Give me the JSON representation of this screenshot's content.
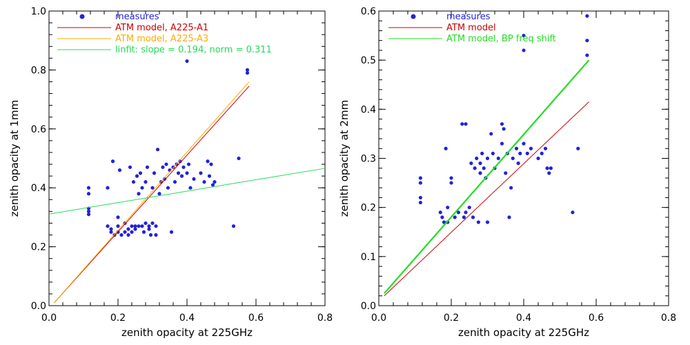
{
  "chart_data": [
    {
      "type": "scatter",
      "xlabel": "zenith opacity at 225GHz",
      "ylabel": "zenith opacity at 1mm",
      "xlim": [
        0,
        0.8
      ],
      "ylim": [
        0,
        1.0
      ],
      "xticks": [
        "0.0",
        "0.2",
        "0.4",
        "0.6",
        "0.8"
      ],
      "yticks": [
        "0.0",
        "0.2",
        "0.4",
        "0.6",
        "0.8",
        "1.0"
      ],
      "legend": [
        {
          "label": "measures",
          "color": "#2222dd",
          "kind": "marker"
        },
        {
          "label": "ATM model, A225-A1",
          "color": "#cc0000",
          "kind": "line"
        },
        {
          "label": "ATM model, A225-A3",
          "color": "#ffaa00",
          "kind": "line"
        },
        {
          "label": "linfit: slope =  0.194, norm =  0.311",
          "color": "#22dd55",
          "kind": "line"
        }
      ],
      "series": [
        {
          "name": "measures",
          "color": "#2222dd",
          "points": [
            [
              0.115,
              0.4
            ],
            [
              0.115,
              0.38
            ],
            [
              0.115,
              0.33
            ],
            [
              0.115,
              0.32
            ],
            [
              0.115,
              0.31
            ],
            [
              0.17,
              0.4
            ],
            [
              0.17,
              0.27
            ],
            [
              0.18,
              0.25
            ],
            [
              0.18,
              0.26
            ],
            [
              0.185,
              0.49
            ],
            [
              0.19,
              0.24
            ],
            [
              0.2,
              0.25
            ],
            [
              0.2,
              0.27
            ],
            [
              0.2,
              0.3
            ],
            [
              0.205,
              0.46
            ],
            [
              0.21,
              0.24
            ],
            [
              0.22,
              0.28
            ],
            [
              0.22,
              0.25
            ],
            [
              0.23,
              0.24
            ],
            [
              0.23,
              0.26
            ],
            [
              0.235,
              0.47
            ],
            [
              0.24,
              0.27
            ],
            [
              0.24,
              0.25
            ],
            [
              0.245,
              0.42
            ],
            [
              0.25,
              0.27
            ],
            [
              0.25,
              0.26
            ],
            [
              0.255,
              0.44
            ],
            [
              0.26,
              0.27
            ],
            [
              0.26,
              0.38
            ],
            [
              0.265,
              0.45
            ],
            [
              0.27,
              0.27
            ],
            [
              0.27,
              0.4
            ],
            [
              0.275,
              0.25
            ],
            [
              0.28,
              0.28
            ],
            [
              0.28,
              0.42
            ],
            [
              0.285,
              0.47
            ],
            [
              0.29,
              0.27
            ],
            [
              0.29,
              0.26
            ],
            [
              0.295,
              0.24
            ],
            [
              0.3,
              0.28
            ],
            [
              0.3,
              0.4
            ],
            [
              0.305,
              0.45
            ],
            [
              0.31,
              0.24
            ],
            [
              0.31,
              0.27
            ],
            [
              0.315,
              0.53
            ],
            [
              0.32,
              0.38
            ],
            [
              0.325,
              0.42
            ],
            [
              0.33,
              0.47
            ],
            [
              0.335,
              0.43
            ],
            [
              0.34,
              0.48
            ],
            [
              0.345,
              0.4
            ],
            [
              0.35,
              0.46
            ],
            [
              0.355,
              0.25
            ],
            [
              0.36,
              0.47
            ],
            [
              0.365,
              0.42
            ],
            [
              0.37,
              0.48
            ],
            [
              0.375,
              0.45
            ],
            [
              0.38,
              0.49
            ],
            [
              0.385,
              0.44
            ],
            [
              0.39,
              0.47
            ],
            [
              0.4,
              0.45
            ],
            [
              0.4,
              0.83
            ],
            [
              0.405,
              0.48
            ],
            [
              0.41,
              0.4
            ],
            [
              0.42,
              0.43
            ],
            [
              0.44,
              0.45
            ],
            [
              0.45,
              0.42
            ],
            [
              0.46,
              0.49
            ],
            [
              0.465,
              0.44
            ],
            [
              0.47,
              0.48
            ],
            [
              0.475,
              0.41
            ],
            [
              0.48,
              0.42
            ],
            [
              0.535,
              0.27
            ],
            [
              0.55,
              0.5
            ],
            [
              0.575,
              0.79
            ],
            [
              0.575,
              0.8
            ]
          ]
        },
        {
          "name": "ATM model, A225-A1",
          "color": "#cc0000",
          "line": [
            [
              0.015,
              0.01
            ],
            [
              0.58,
              0.745
            ]
          ]
        },
        {
          "name": "ATM model, A225-A3",
          "color": "#ffaa00",
          "line": [
            [
              0.015,
              0.01
            ],
            [
              0.58,
              0.76
            ]
          ]
        },
        {
          "name": "linfit: slope =  0.194, norm =  0.311",
          "color": "#22dd55",
          "line": [
            [
              0.0,
              0.311
            ],
            [
              0.8,
              0.4662
            ]
          ]
        }
      ]
    },
    {
      "type": "scatter",
      "xlabel": "zenith opacity at 225GHz",
      "ylabel": "zenith opacity at 2mm",
      "xlim": [
        0,
        0.8
      ],
      "ylim": [
        0,
        0.6
      ],
      "xticks": [
        "0.0",
        "0.2",
        "0.4",
        "0.6",
        "0.8"
      ],
      "yticks": [
        "0.0",
        "0.1",
        "0.2",
        "0.3",
        "0.4",
        "0.5",
        "0.6"
      ],
      "legend": [
        {
          "label": "measures",
          "color": "#2222dd",
          "kind": "marker"
        },
        {
          "label": "ATM model",
          "color": "#cc0000",
          "kind": "line"
        },
        {
          "label": "ATM model, BP freq shift",
          "color": "#22dd22",
          "kind": "line"
        }
      ],
      "series": [
        {
          "name": "measures",
          "color": "#2222dd",
          "points": [
            [
              0.115,
              0.26
            ],
            [
              0.115,
              0.25
            ],
            [
              0.115,
              0.22
            ],
            [
              0.115,
              0.21
            ],
            [
              0.17,
              0.19
            ],
            [
              0.175,
              0.18
            ],
            [
              0.18,
              0.17
            ],
            [
              0.185,
              0.32
            ],
            [
              0.19,
              0.2
            ],
            [
              0.19,
              0.17
            ],
            [
              0.2,
              0.26
            ],
            [
              0.2,
              0.25
            ],
            [
              0.21,
              0.18
            ],
            [
              0.22,
              0.19
            ],
            [
              0.23,
              0.37
            ],
            [
              0.235,
              0.18
            ],
            [
              0.24,
              0.19
            ],
            [
              0.24,
              0.37
            ],
            [
              0.25,
              0.2
            ],
            [
              0.255,
              0.29
            ],
            [
              0.26,
              0.18
            ],
            [
              0.265,
              0.28
            ],
            [
              0.27,
              0.3
            ],
            [
              0.275,
              0.17
            ],
            [
              0.28,
              0.29
            ],
            [
              0.28,
              0.27
            ],
            [
              0.285,
              0.31
            ],
            [
              0.29,
              0.28
            ],
            [
              0.295,
              0.26
            ],
            [
              0.3,
              0.3
            ],
            [
              0.3,
              0.17
            ],
            [
              0.31,
              0.35
            ],
            [
              0.315,
              0.31
            ],
            [
              0.32,
              0.28
            ],
            [
              0.33,
              0.3
            ],
            [
              0.34,
              0.37
            ],
            [
              0.34,
              0.33
            ],
            [
              0.345,
              0.36
            ],
            [
              0.35,
              0.27
            ],
            [
              0.355,
              0.31
            ],
            [
              0.36,
              0.18
            ],
            [
              0.365,
              0.24
            ],
            [
              0.37,
              0.3
            ],
            [
              0.38,
              0.32
            ],
            [
              0.385,
              0.29
            ],
            [
              0.39,
              0.31
            ],
            [
              0.4,
              0.33
            ],
            [
              0.4,
              0.55
            ],
            [
              0.4,
              0.52
            ],
            [
              0.41,
              0.31
            ],
            [
              0.42,
              0.32
            ],
            [
              0.44,
              0.3
            ],
            [
              0.45,
              0.31
            ],
            [
              0.46,
              0.32
            ],
            [
              0.465,
              0.28
            ],
            [
              0.47,
              0.27
            ],
            [
              0.475,
              0.28
            ],
            [
              0.535,
              0.19
            ],
            [
              0.55,
              0.32
            ],
            [
              0.575,
              0.59
            ],
            [
              0.575,
              0.54
            ],
            [
              0.575,
              0.51
            ]
          ]
        },
        {
          "name": "ATM model",
          "color": "#cc0000",
          "line": [
            [
              0.015,
              0.02
            ],
            [
              0.58,
              0.415
            ]
          ]
        },
        {
          "name": "ATM model, BP freq shift",
          "color": "#22dd22",
          "line": [
            [
              0.015,
              0.025
            ],
            [
              0.58,
              0.5
            ]
          ]
        }
      ]
    }
  ]
}
